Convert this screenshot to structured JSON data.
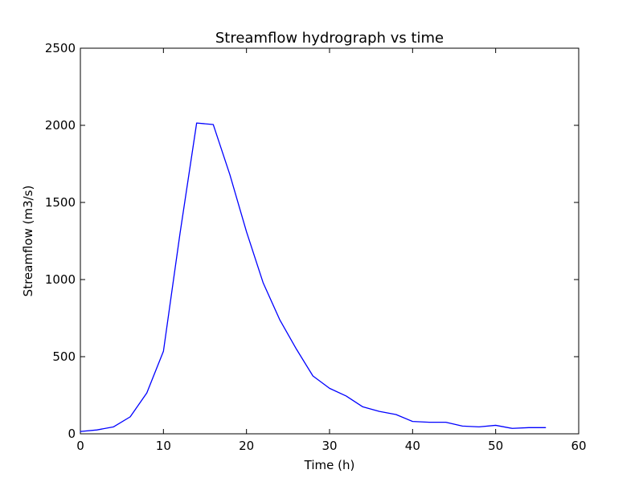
{
  "chart_data": {
    "type": "line",
    "title": "Streamflow hydrograph vs time",
    "xlabel": "Time (h)",
    "ylabel": "Streamflow (m3/s)",
    "xlim": [
      0,
      60
    ],
    "ylim": [
      0,
      2500
    ],
    "xticks": [
      0,
      10,
      20,
      30,
      40,
      50,
      60
    ],
    "yticks": [
      0,
      500,
      1000,
      1500,
      2000,
      2500
    ],
    "grid": false,
    "series": [
      {
        "color": "#0000ff",
        "x": [
          0,
          2,
          4,
          6,
          8,
          10,
          12,
          14,
          16,
          18,
          20,
          22,
          24,
          26,
          28,
          30,
          32,
          34,
          36,
          38,
          40,
          42,
          44,
          46,
          48,
          50,
          52,
          54,
          56
        ],
        "y": [
          15,
          25,
          45,
          110,
          265,
          535,
          1300,
          2015,
          2005,
          1680,
          1310,
          980,
          740,
          550,
          375,
          295,
          245,
          175,
          145,
          125,
          80,
          75,
          75,
          50,
          45,
          55,
          35,
          40,
          40
        ]
      }
    ]
  }
}
